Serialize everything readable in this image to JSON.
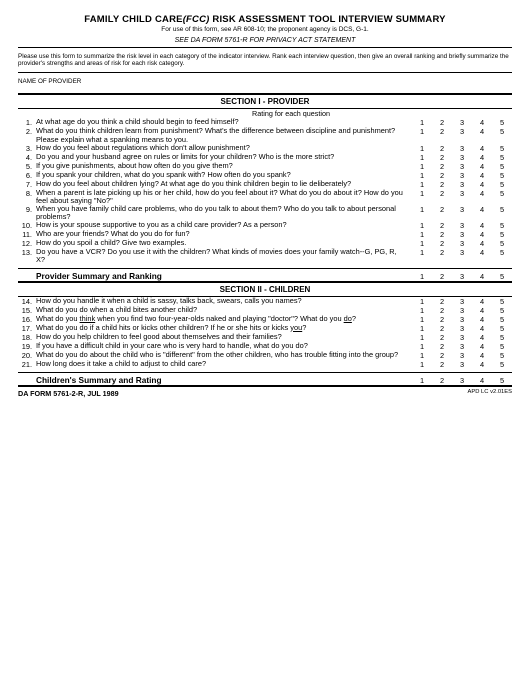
{
  "header": {
    "title_a": "FAMILY CHILD CARE",
    "title_b": "(FCC)",
    "title_c": "  RISK ASSESSMENT TOOL INTERVIEW SUMMARY",
    "sub": "For use of this form, see AR 608-10; the proponent agency is DCS, G-1.",
    "privacy": "SEE DA FORM 5761-R FOR PRIVACY ACT STATEMENT",
    "instruct": "Please use this form to summarize the risk level in each category of the indicator interview.  Rank each interview question, then give an overall ranking and briefly summarize the provider's strengths and areas of risk for each risk category.",
    "name_label": "NAME OF PROVIDER"
  },
  "section1": {
    "heading": "SECTION I - PROVIDER",
    "rating_header": "Rating for each question",
    "questions": [
      {
        "n": "1.",
        "t": "At what age do you think a child should begin to feed himself?"
      },
      {
        "n": "2.",
        "t": "What do you think children learn from punishment?  What's the difference between discipline and punishment?  Please explain what a spanking means to you."
      },
      {
        "n": "3.",
        "t": "How do you feel about regulations which don't allow punishment?"
      },
      {
        "n": "4.",
        "t": "Do you and your husband agree on rules or limits for your children?  Who is the more strict?"
      },
      {
        "n": "5.",
        "t": "If you give punishments, about how often do you give them?"
      },
      {
        "n": "6.",
        "t": "If you spank your children, what do you spank with?   How often do you spank?"
      },
      {
        "n": "7.",
        "t": "How do you feel about children lying?  At what age do you think children begin to lie deliberately?"
      },
      {
        "n": "8.",
        "t": "When a parent  is late picking up his or her child, how do you feel about it?  What do you do about it?  How do you feel about saying \"No?\""
      },
      {
        "n": "9.",
        "t": "When you have family child care problems, who do you talk to about them?  Who do you talk to about personal problems?"
      },
      {
        "n": "10.",
        "t": "How is your spouse supportive to you as a child care provider?  As a person?"
      },
      {
        "n": "11.",
        "t": "Who are your friends?  What do you do for fun?"
      },
      {
        "n": "12.",
        "t": "How do you spoil a child?  Give two examples."
      },
      {
        "n": "13.",
        "t": "Do you have a VCR?  Do you use it with the children?  What kinds of movies does your family watch--G, PG, R, X?"
      }
    ],
    "summary": "Provider Summary and Ranking"
  },
  "section2": {
    "heading": "SECTION II - CHILDREN",
    "questions": [
      {
        "n": "14.",
        "t": "How do you handle it when a child is sassy, talks back, swears, calls you names?"
      },
      {
        "n": "15.",
        "t": "What do you do when a child bites another child?"
      },
      {
        "n": "16.",
        "t": "What do you <u>think</u> when you find two four-year-olds naked and playing \"doctor\"?  What do you <u>do</u>?",
        "html": true
      },
      {
        "n": "17.",
        "t": "What do you do if a child hits or kicks other children?  If he or she hits or kicks <u>you</u>?",
        "html": true
      },
      {
        "n": "18.",
        "t": "How do you help children to feel good about themselves and their families?"
      },
      {
        "n": "19.",
        "t": "If you have a difficult child in your care who is very hard to handle, what do you do?"
      },
      {
        "n": "20.",
        "t": "What do you do about the child who is \"different\" from the other children, who has trouble fitting into the group?"
      },
      {
        "n": "21.",
        "t": "How long does it take a child to adjust to child care?"
      }
    ],
    "summary": "Children's Summary and Rating"
  },
  "ratings": [
    "1",
    "2",
    "3",
    "4",
    "5"
  ],
  "footer": {
    "left": "DA FORM 5761-2-R, JUL 1989",
    "right": "APD LC v2.01ES"
  }
}
